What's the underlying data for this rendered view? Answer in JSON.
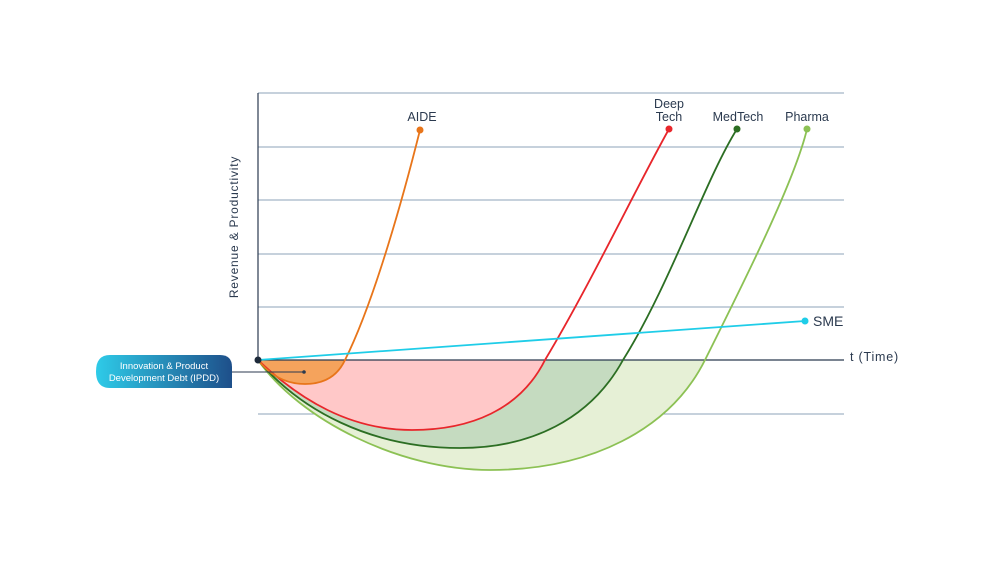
{
  "axes": {
    "y_label": "Revenue & Productivity",
    "x_label": "t (Time)"
  },
  "ipdd_badge": {
    "line1": "Innovation & Product",
    "line2": "Development Debt (IPDD)"
  },
  "series": {
    "aide": {
      "name": "AIDE",
      "color": "#e8751a",
      "fill": "#f5a35c"
    },
    "deeptech": {
      "name_line1": "Deep",
      "name_line2": "Tech",
      "color": "#e8262b",
      "fill": "#ffc8c8"
    },
    "medtech": {
      "name": "MedTech",
      "color": "#2c6e23",
      "fill": "#c5dbc0"
    },
    "pharma": {
      "name": "Pharma",
      "color": "#8cc154",
      "fill": "#e6f0d6"
    },
    "sme": {
      "name": "SME",
      "color": "#1fcde8"
    }
  },
  "colors": {
    "gridline": "#8da3b8",
    "axis": "#2b3a4f",
    "badge_left": "#2ecbe8",
    "badge_right": "#1e4f8a"
  }
}
